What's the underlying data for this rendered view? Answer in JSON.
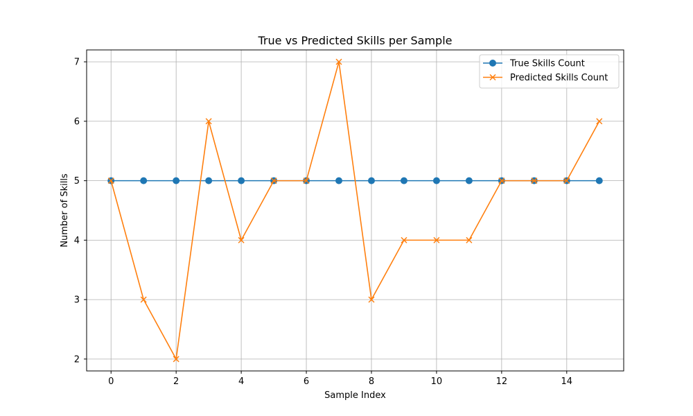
{
  "chart_data": {
    "type": "line",
    "title": "True vs Predicted Skills per Sample",
    "xlabel": "Sample Index",
    "ylabel": "Number of Skills",
    "xlim": [
      -0.75,
      15.75
    ],
    "ylim": [
      1.8,
      7.2
    ],
    "x_ticks": [
      0,
      2,
      4,
      6,
      8,
      10,
      12,
      14
    ],
    "y_ticks": [
      2,
      3,
      4,
      5,
      6,
      7
    ],
    "grid": true,
    "legend_position": "upper right",
    "x": [
      0,
      1,
      2,
      3,
      4,
      5,
      6,
      7,
      8,
      9,
      10,
      11,
      12,
      13,
      14,
      15
    ],
    "series": [
      {
        "name": "True Skills Count",
        "marker": "circle",
        "color": "#1f77b4",
        "values": [
          5,
          5,
          5,
          5,
          5,
          5,
          5,
          5,
          5,
          5,
          5,
          5,
          5,
          5,
          5,
          5
        ]
      },
      {
        "name": "Predicted Skills Count",
        "marker": "x",
        "color": "#ff7f0e",
        "values": [
          5,
          3,
          2,
          6,
          4,
          5,
          5,
          7,
          3,
          4,
          4,
          4,
          5,
          5,
          5,
          6
        ]
      }
    ]
  }
}
